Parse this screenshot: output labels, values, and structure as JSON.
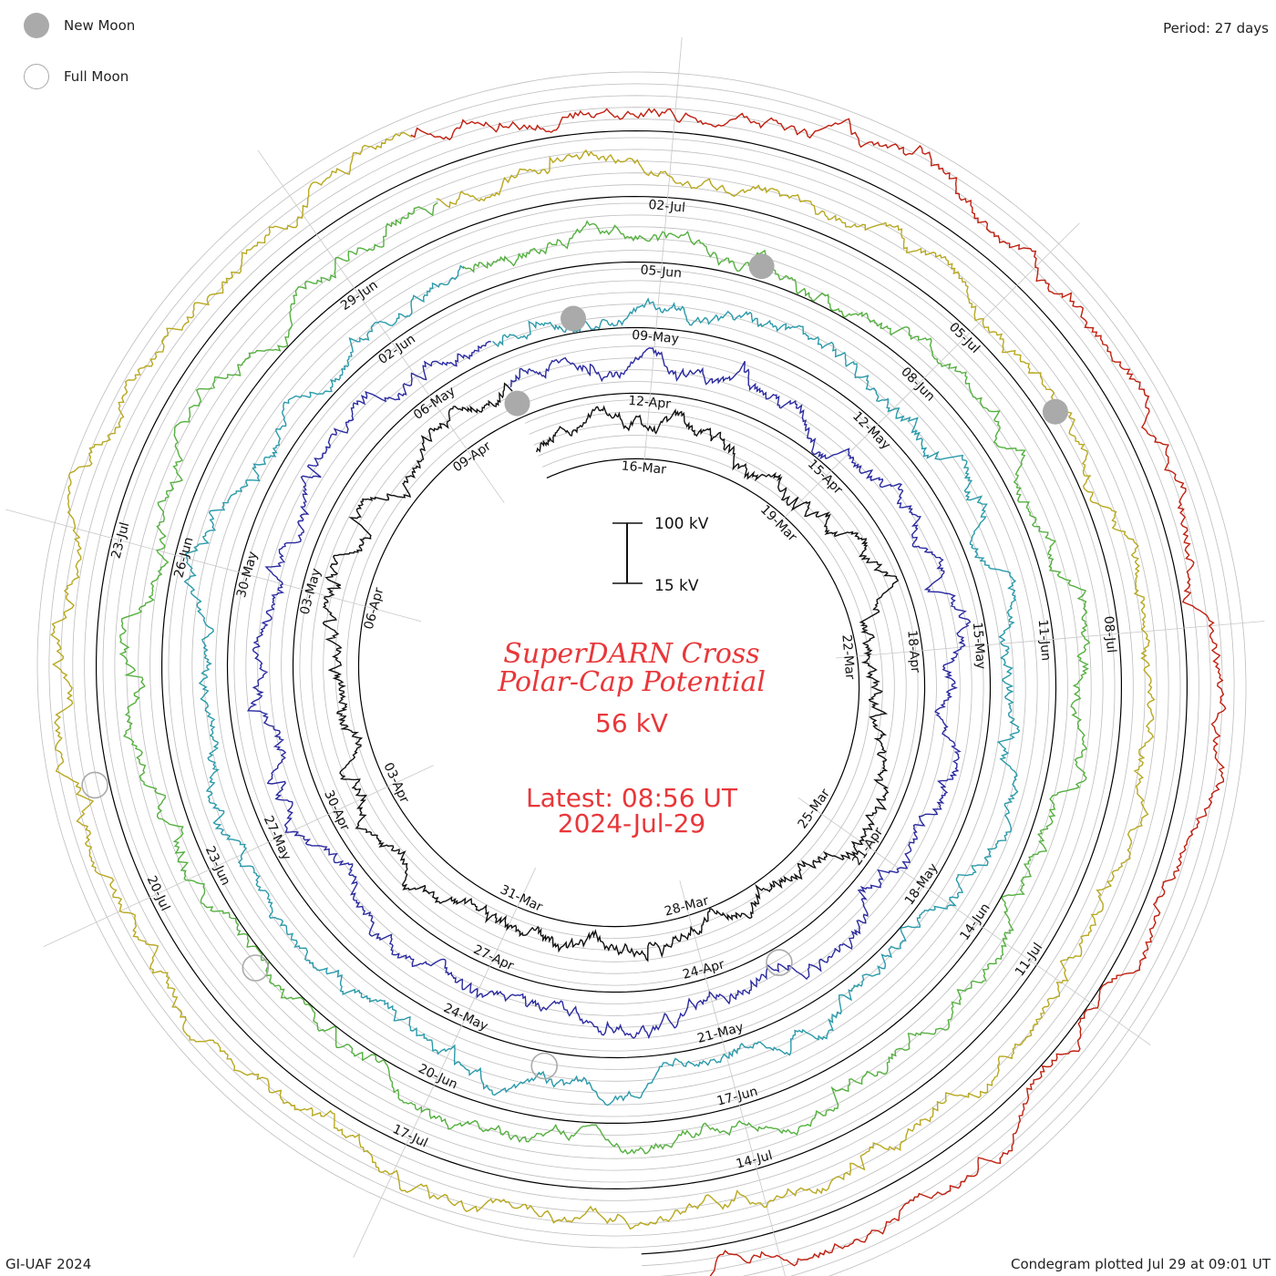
{
  "legend": {
    "new_moon_label": "New Moon",
    "full_moon_label": "Full Moon",
    "new_moon_color": "#aaaaaa",
    "full_moon_color": "#aaaaaa"
  },
  "period_label": "Period: 27 days",
  "footer": {
    "left": "GI-UAF 2024",
    "right": "Condegram plotted Jul 29 at 09:01 UT"
  },
  "center": {
    "title_line1": "SuperDARN Cross",
    "title_line2": "Polar-Cap Potential",
    "current_value": "56 kV",
    "latest_time": "Latest: 08:56 UT",
    "latest_date": "2024-Jul-29",
    "text_color": "#e8373a"
  },
  "chart_data": {
    "type": "line",
    "subtype": "condegram-spiral",
    "period_days": 27,
    "ylim_kV": [
      15,
      100
    ],
    "scale_bar": {
      "top_label": "100 kV",
      "bottom_label": "15 kV"
    },
    "turns": [
      {
        "color": "#101010",
        "labels": [
          "16-Mar",
          "19-Mar",
          "22-Mar",
          "25-Mar",
          "28-Mar",
          "31-Mar",
          "03-Apr",
          "06-Apr",
          "09-Apr"
        ]
      },
      {
        "color": "#2a2aa0",
        "labels": [
          "12-Apr",
          "15-Apr",
          "18-Apr",
          "21-Apr",
          "24-Apr",
          "27-Apr",
          "30-Apr",
          "03-May",
          "06-May"
        ]
      },
      {
        "color": "#2a9aaa",
        "labels": [
          "09-May",
          "12-May",
          "15-May",
          "18-May",
          "21-May",
          "24-May",
          "27-May",
          "30-May",
          "02-Jun"
        ]
      },
      {
        "color": "#55b040",
        "labels": [
          "05-Jun",
          "08-Jun",
          "11-Jun",
          "14-Jun",
          "17-Jun",
          "20-Jun",
          "23-Jun",
          "26-Jun",
          "29-Jun"
        ]
      },
      {
        "color": "#b8a820",
        "labels": [
          "02-Jul",
          "05-Jul",
          "08-Jul",
          "11-Jul",
          "14-Jul",
          "17-Jul",
          "20-Jul",
          "23-Jul"
        ]
      },
      {
        "color": "#c02010",
        "labels": []
      }
    ],
    "moon_markers": [
      {
        "type": "new",
        "date": "10-Apr"
      },
      {
        "type": "new",
        "date": "08-May"
      },
      {
        "type": "new",
        "date": "06-Jun"
      },
      {
        "type": "new",
        "date": "06-Jul"
      },
      {
        "type": "full",
        "date": "23-Apr"
      },
      {
        "type": "full",
        "date": "23-May"
      },
      {
        "type": "full",
        "date": "22-Jun"
      },
      {
        "type": "full",
        "date": "21-Jul"
      }
    ],
    "start_date": "14-Mar",
    "end_date": "29-Jul",
    "latest_value_kV": 56
  }
}
